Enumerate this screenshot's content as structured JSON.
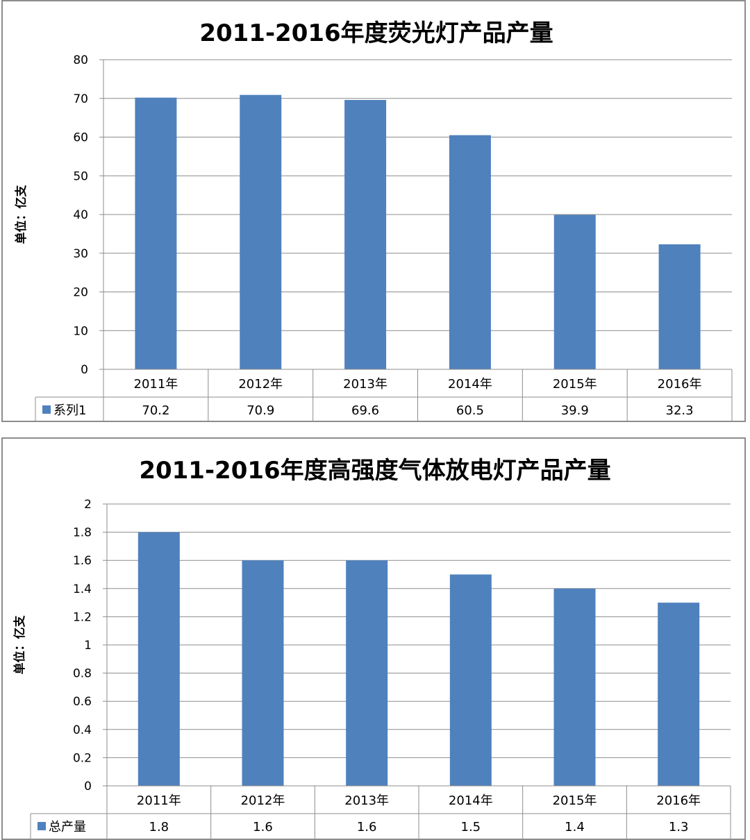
{
  "chart_data": [
    {
      "type": "bar",
      "title": "2011-2016年度荧光灯产品产量",
      "ylabel": "单位：亿支",
      "xlabel": "",
      "categories": [
        "2011年",
        "2012年",
        "2013年",
        "2014年",
        "2015年",
        "2016年"
      ],
      "series": [
        {
          "name": "系列1",
          "values": [
            70.2,
            70.9,
            69.6,
            60.5,
            39.9,
            32.3
          ]
        }
      ],
      "value_labels": [
        "70.2",
        "70.9",
        "69.6",
        "60.5",
        "39.9",
        "32.3"
      ],
      "ylim": [
        0,
        80
      ],
      "yticks": [
        "0",
        "10",
        "20",
        "30",
        "40",
        "50",
        "60",
        "70",
        "80"
      ],
      "grid": true,
      "legend": "data-table-bottom-left",
      "bar_color": "#4f81bd"
    },
    {
      "type": "bar",
      "title": "2011-2016年度高强度气体放电灯产品产量",
      "ylabel": "单位：亿支",
      "xlabel": "",
      "categories": [
        "2011年",
        "2012年",
        "2013年",
        "2014年",
        "2015年",
        "2016年"
      ],
      "series": [
        {
          "name": "总产量",
          "values": [
            1.8,
            1.6,
            1.6,
            1.5,
            1.4,
            1.3
          ]
        }
      ],
      "value_labels": [
        "1.8",
        "1.6",
        "1.6",
        "1.5",
        "1.4",
        "1.3"
      ],
      "ylim": [
        0,
        2
      ],
      "yticks": [
        "0",
        "0.2",
        "0.4",
        "0.6",
        "0.8",
        "1",
        "1.2",
        "1.4",
        "1.6",
        "1.8",
        "2"
      ],
      "grid": true,
      "legend": "data-table-bottom-left",
      "bar_color": "#4f81bd"
    }
  ]
}
